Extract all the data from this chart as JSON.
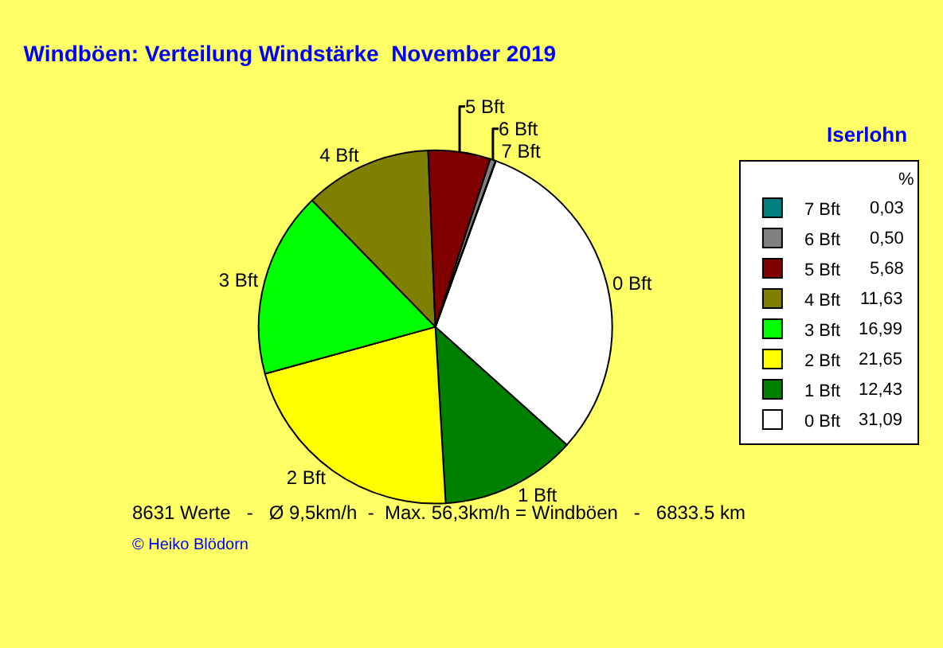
{
  "chart_data": {
    "type": "pie",
    "title": "Windböen: Verteilung Windstärke  November 2019",
    "subtitle": "Iserlohn",
    "legend_title": "%",
    "categories": [
      "0 Bft",
      "1 Bft",
      "2 Bft",
      "3 Bft",
      "4 Bft",
      "5 Bft",
      "6 Bft",
      "7 Bft"
    ],
    "values": [
      31.09,
      12.43,
      21.65,
      16.99,
      11.63,
      5.68,
      0.5,
      0.03
    ],
    "value_labels": [
      "31,09",
      "12,43",
      "21,65",
      "16,99",
      "11,63",
      "5,68",
      "0,50",
      "0,03"
    ],
    "colors": [
      "#ffffff",
      "#008000",
      "#ffff00",
      "#00ff00",
      "#808000",
      "#800000",
      "#808080",
      "#008080"
    ],
    "legend": "top right",
    "annotations": [
      "8631 Werte   -   Ø 9,5km/h  -  Max. 56,3km/h = Windböen   -   6833.5 km",
      "© Heiko Blödorn"
    ]
  }
}
